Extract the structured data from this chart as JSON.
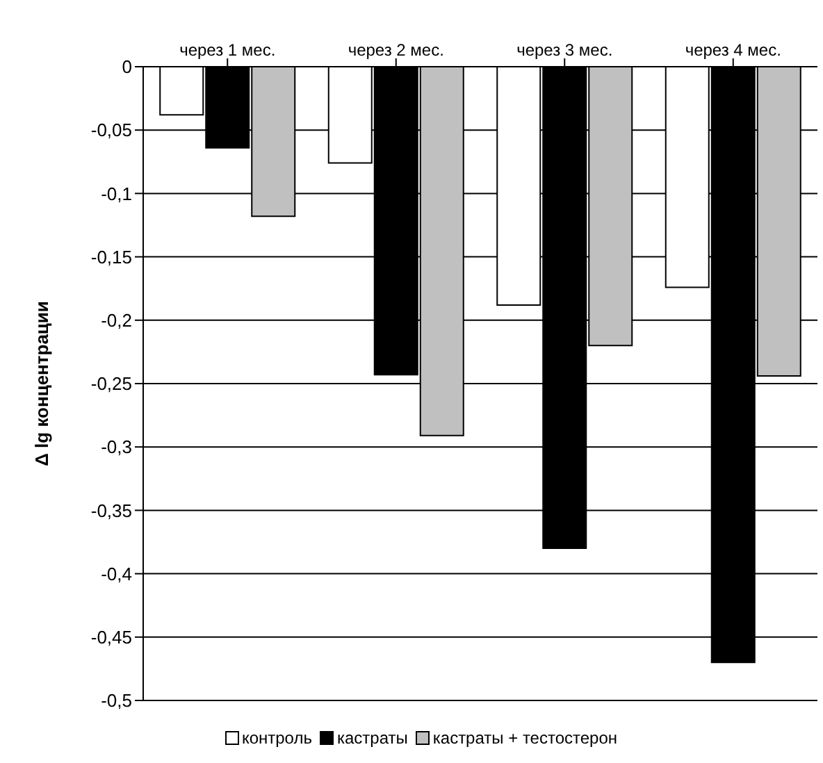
{
  "chart_data": {
    "type": "bar",
    "ylabel": "Δ lg концентрации",
    "categories": [
      "через 1 мес.",
      "через 2 мес.",
      "через 3 мес.",
      "через 4 мес."
    ],
    "series": [
      {
        "name": "контроль",
        "color": "#ffffff",
        "values": [
          -0.038,
          -0.076,
          -0.188,
          -0.174
        ]
      },
      {
        "name": "кастраты",
        "color": "#000000",
        "values": [
          -0.064,
          -0.243,
          -0.38,
          -0.47
        ]
      },
      {
        "name": "кастраты + тестостерон",
        "color": "#c0c0c0",
        "values": [
          -0.118,
          -0.291,
          -0.22,
          -0.244
        ]
      }
    ],
    "ylim": [
      -0.5,
      0
    ],
    "yticks": [
      0,
      {
        "value": -0.05,
        "label": "-0,05"
      },
      {
        "value": -0.1,
        "label": "-0,1"
      },
      {
        "value": -0.15,
        "label": "-0,15"
      },
      {
        "value": -0.2,
        "label": "-0,2"
      },
      {
        "value": -0.25,
        "label": "-0,25"
      },
      {
        "value": -0.3,
        "label": "-0,3"
      },
      {
        "value": -0.35,
        "label": "-0,35"
      },
      {
        "value": -0.4,
        "label": "-0,4"
      },
      {
        "value": -0.45,
        "label": "-0,45"
      },
      {
        "value": -0.5,
        "label": "-0,5"
      }
    ],
    "grid": "y",
    "legend": "bottom"
  }
}
